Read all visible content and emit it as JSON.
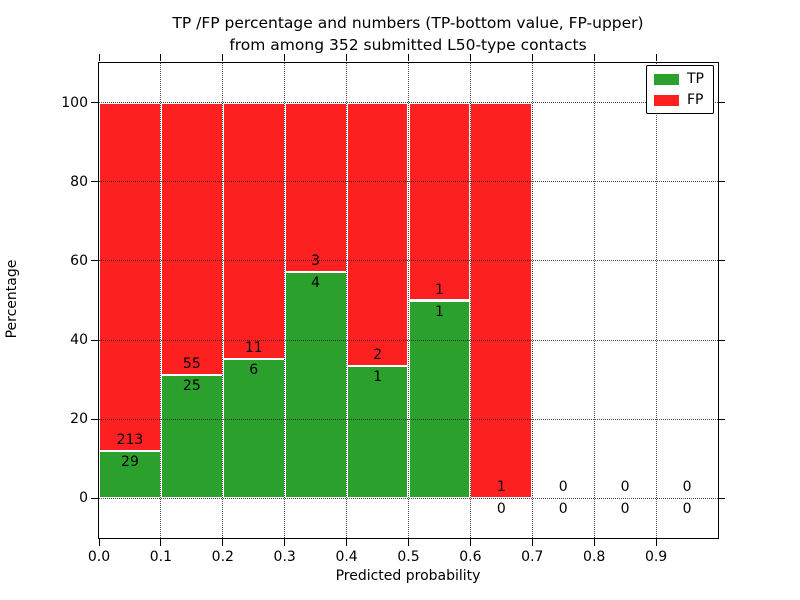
{
  "figure": {
    "title_line1": "TP /FP percentage and numbers (TP-bottom value, FP-upper)",
    "title_line2": "from among 352 submitted L50-type contacts"
  },
  "chart_data": {
    "type": "bar",
    "stacked": true,
    "title": "TP /FP percentage and numbers (TP-bottom value, FP-upper)\nfrom among 352 submitted L50-type contacts",
    "xlabel": "Predicted probability",
    "ylabel": "Percentage",
    "xlim": [
      0.0,
      1.0
    ],
    "ylim": [
      -10,
      110
    ],
    "xticks": [
      "0.0",
      "0.1",
      "0.2",
      "0.3",
      "0.4",
      "0.5",
      "0.6",
      "0.7",
      "0.8",
      "0.9"
    ],
    "yticks": [
      "0",
      "20",
      "40",
      "60",
      "80",
      "100"
    ],
    "ytick_values": [
      0,
      20,
      40,
      60,
      80,
      100
    ],
    "bin_width": 0.1,
    "grid": "dotted",
    "total_contacts": 352,
    "legend": {
      "position": "upper right",
      "entries": [
        {
          "label": "TP",
          "color": "#2ca02c"
        },
        {
          "label": "FP",
          "color": "#fd2020"
        }
      ]
    },
    "colors": {
      "tp": "#2ca02c",
      "fp": "#fd2020",
      "grid": "#000000",
      "text": "#000000",
      "background": "#ffffff"
    },
    "bins": [
      {
        "range": [
          0.0,
          0.1
        ],
        "tp": 29,
        "fp": 213,
        "tp_pct": 11.98,
        "fp_pct": 88.02
      },
      {
        "range": [
          0.1,
          0.2
        ],
        "tp": 25,
        "fp": 55,
        "tp_pct": 31.25,
        "fp_pct": 68.75
      },
      {
        "range": [
          0.2,
          0.3
        ],
        "tp": 6,
        "fp": 11,
        "tp_pct": 35.29,
        "fp_pct": 64.71
      },
      {
        "range": [
          0.3,
          0.4
        ],
        "tp": 4,
        "fp": 3,
        "tp_pct": 57.14,
        "fp_pct": 42.86
      },
      {
        "range": [
          0.4,
          0.5
        ],
        "tp": 1,
        "fp": 2,
        "tp_pct": 33.33,
        "fp_pct": 66.67
      },
      {
        "range": [
          0.5,
          0.6
        ],
        "tp": 1,
        "fp": 1,
        "tp_pct": 50.0,
        "fp_pct": 50.0
      },
      {
        "range": [
          0.6,
          0.7
        ],
        "tp": 0,
        "fp": 1,
        "tp_pct": 0.0,
        "fp_pct": 100.0
      },
      {
        "range": [
          0.7,
          0.8
        ],
        "tp": 0,
        "fp": 0,
        "tp_pct": 0.0,
        "fp_pct": 0.0
      },
      {
        "range": [
          0.8,
          0.9
        ],
        "tp": 0,
        "fp": 0,
        "tp_pct": 0.0,
        "fp_pct": 0.0
      },
      {
        "range": [
          0.9,
          1.0
        ],
        "tp": 0,
        "fp": 0,
        "tp_pct": 0.0,
        "fp_pct": 0.0
      }
    ]
  }
}
